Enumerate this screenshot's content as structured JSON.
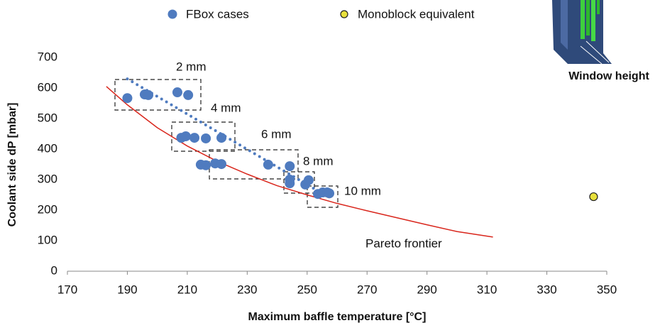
{
  "chart_data": {
    "type": "scatter",
    "x_label": "Maximum baffle temperature [°C]",
    "y_label": "Coolant side dP [mbar]",
    "xlim": [
      170,
      350
    ],
    "xticks": [
      170,
      190,
      210,
      230,
      250,
      270,
      290,
      310,
      330,
      350
    ],
    "ylim": [
      0,
      700
    ],
    "yticks": [
      0,
      100,
      200,
      300,
      400,
      500,
      600,
      700
    ],
    "series": [
      {
        "name": "FBox cases",
        "color": "#4f7bbf",
        "x": [
          190,
          195.8,
          197,
          206.7,
          210.3,
          208,
          209.5,
          212.4,
          216.2,
          221.4,
          214.5,
          216.2,
          219.3,
          221.4,
          237,
          244.2,
          244.2,
          244.2,
          249.4,
          250.5,
          253.6,
          255.2,
          256.7,
          257.4
        ],
        "y": [
          567,
          579,
          577,
          586,
          577,
          437,
          442,
          437,
          435,
          437,
          349,
          347,
          353,
          351,
          349,
          344,
          300,
          288,
          284,
          298,
          253,
          258,
          258,
          255
        ]
      },
      {
        "name": "Monoblock equivalent",
        "color": "#e8e03c",
        "x": [
          345.6
        ],
        "y": [
          244
        ]
      }
    ],
    "trend": {
      "color": "#4f7bbf",
      "x": [
        190,
        255
      ],
      "y": [
        630,
        255
      ]
    },
    "frontier": {
      "name": "Pareto frontier",
      "color": "#d9261c",
      "x": [
        183,
        190,
        200,
        210,
        220,
        230,
        240,
        250,
        260,
        270,
        280,
        290,
        300,
        312
      ],
      "y": [
        605,
        545,
        470,
        410,
        360,
        318,
        280,
        250,
        222,
        198,
        175,
        152,
        130,
        112
      ]
    },
    "annotations": [
      "2 mm",
      "4 mm",
      "6 mm",
      "8 mm",
      "10 mm"
    ],
    "inset_label": "Window height"
  }
}
